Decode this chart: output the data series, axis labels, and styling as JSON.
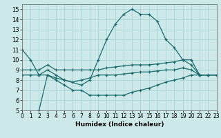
{
  "xlabel": "Humidex (Indice chaleur)",
  "bg_color": "#cce8e8",
  "grid_color": "#aad4d4",
  "line_color": "#1a6b6b",
  "xlim": [
    0,
    23
  ],
  "ylim": [
    5,
    15.5
  ],
  "xticks": [
    0,
    1,
    2,
    3,
    4,
    5,
    6,
    7,
    8,
    9,
    10,
    11,
    12,
    13,
    14,
    15,
    16,
    17,
    18,
    19,
    20,
    21,
    22,
    23
  ],
  "yticks": [
    5,
    6,
    7,
    8,
    9,
    10,
    11,
    12,
    13,
    14,
    15
  ],
  "series": [
    {
      "x": [
        0,
        1,
        2,
        3,
        4,
        5,
        7,
        8,
        9,
        10,
        11,
        12,
        13,
        14,
        15,
        16,
        17,
        18,
        19,
        20,
        21,
        22,
        23
      ],
      "y": [
        11,
        10,
        8.5,
        9,
        8.5,
        8,
        7.5,
        8,
        10,
        12,
        13.5,
        14.5,
        15,
        14.5,
        14.5,
        13.8,
        12,
        11.2,
        10,
        10,
        8.5,
        8.5,
        8.5
      ]
    },
    {
      "x": [
        0,
        1,
        2,
        3,
        4,
        5,
        6,
        7,
        8,
        9,
        10,
        11,
        12,
        13,
        14,
        15,
        16,
        17,
        18,
        19,
        20,
        21,
        22,
        23
      ],
      "y": [
        9,
        9,
        9,
        9.5,
        9,
        9,
        9,
        9,
        9,
        9,
        9.2,
        9.3,
        9.4,
        9.5,
        9.5,
        9.5,
        9.6,
        9.7,
        9.8,
        10,
        9.5,
        8.5,
        8.5,
        8.5
      ]
    },
    {
      "x": [
        0,
        1,
        2,
        3,
        4,
        5,
        6,
        7,
        8,
        9,
        10,
        11,
        12,
        13,
        14,
        15,
        16,
        17,
        18,
        19,
        20,
        21,
        22,
        23
      ],
      "y": [
        8.5,
        8.5,
        8.5,
        8.5,
        8.2,
        8,
        7.8,
        8,
        8.2,
        8.5,
        8.5,
        8.5,
        8.6,
        8.7,
        8.8,
        8.8,
        8.9,
        9,
        9,
        9.2,
        9,
        8.5,
        8.5,
        8.5
      ]
    },
    {
      "x": [
        2,
        3,
        4,
        5,
        6,
        7,
        8,
        9,
        10,
        11,
        12,
        13,
        14,
        15,
        16,
        17,
        18,
        19,
        20,
        21,
        22,
        23
      ],
      "y": [
        5,
        8.5,
        8,
        7.5,
        7,
        7,
        6.5,
        6.5,
        6.5,
        6.5,
        6.5,
        6.8,
        7,
        7.2,
        7.5,
        7.8,
        8,
        8.2,
        8.5,
        8.5,
        8.5,
        8.5
      ]
    }
  ],
  "marker": "+",
  "marker_size": 3,
  "line_width": 0.9
}
